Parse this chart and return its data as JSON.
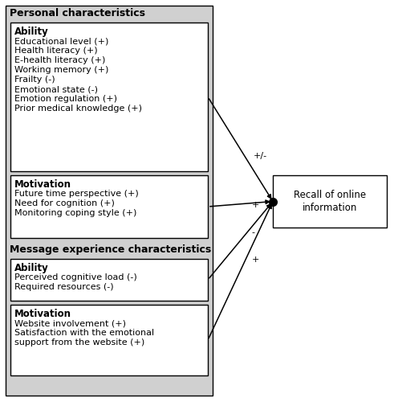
{
  "personal_char_label": "Personal characteristics",
  "ability1_label": "Ability",
  "ability1_items": [
    "Educational level (+)",
    "Health literacy (+)",
    "E-health literacy (+)",
    "Working memory (+)",
    "Frailty (-)",
    "Emotional state (-)",
    "Emotion regulation (+)",
    "Prior medical knowledge (+)"
  ],
  "motivation1_label": "Motivation",
  "motivation1_items": [
    "Future time perspective (+)",
    "Need for cognition (+)",
    "Monitoring coping style (+)"
  ],
  "message_char_label": "Message experience characteristics",
  "ability2_label": "Ability",
  "ability2_items": [
    "Perceived cognitive load (-)",
    "Required resources (-)"
  ],
  "motivation2_label": "Motivation",
  "motivation2_items": [
    "Website involvement (+)",
    "Satisfaction with the emotional",
    "support from the website (+)"
  ],
  "outcome_label": "Recall of online\ninformation",
  "arrow_labels": [
    "+/-",
    "+",
    "-",
    "+"
  ],
  "bg_gray": "#d0d0d0",
  "bg_white": "#ffffff",
  "border_color": "#000000",
  "text_color": "#000000",
  "font_size_title": 9.0,
  "font_size_section": 8.5,
  "font_size_item": 8.0,
  "figsize": [
    4.91,
    5.0
  ],
  "dpi": 100
}
